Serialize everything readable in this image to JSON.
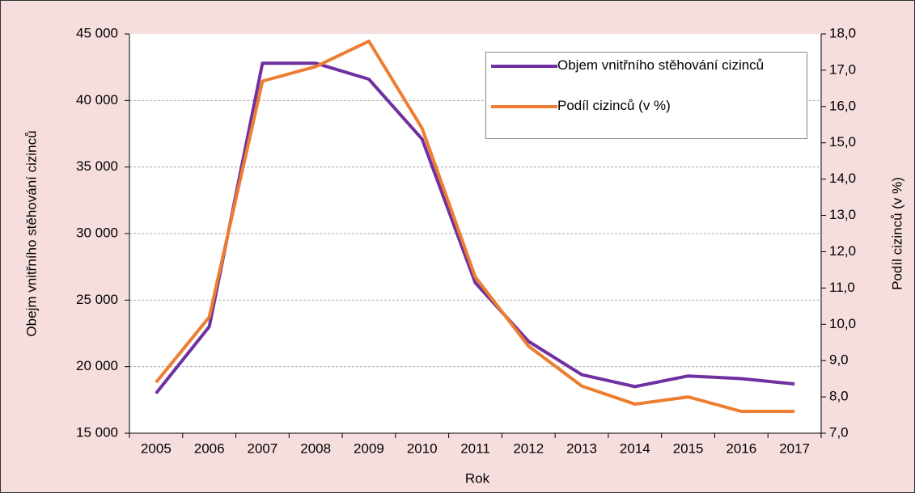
{
  "chart_data": {
    "type": "line",
    "categories": [
      "2005",
      "2006",
      "2007",
      "2008",
      "2009",
      "2010",
      "2011",
      "2012",
      "2013",
      "2014",
      "2015",
      "2016",
      "2017"
    ],
    "series": [
      {
        "name": "Objem vnitřního stěhování cizinců",
        "color": "#7030a0",
        "axis": "y",
        "values": [
          18000,
          23000,
          42800,
          42800,
          41600,
          37100,
          26300,
          21900,
          19400,
          18500,
          19300,
          19100,
          18700
        ]
      },
      {
        "name": "Podíl cizinců (v %)",
        "color": "#ed7d31",
        "axis": "y2",
        "values": [
          8.4,
          10.2,
          16.7,
          17.1,
          17.8,
          15.4,
          11.3,
          9.4,
          8.3,
          7.8,
          8.0,
          7.6,
          7.6
        ]
      }
    ],
    "xlabel": "Rok",
    "ylabel": "Obejm vnitřního stěhování cizinců",
    "y2label": "Podíl cizinců (v %)",
    "ylim": [
      15000,
      45000
    ],
    "yticks": [
      {
        "value": 15000,
        "label": "15 000"
      },
      {
        "value": 20000,
        "label": "20 000"
      },
      {
        "value": 25000,
        "label": "25 000"
      },
      {
        "value": 30000,
        "label": "30 000"
      },
      {
        "value": 35000,
        "label": "35 000"
      },
      {
        "value": 40000,
        "label": "40 000"
      },
      {
        "value": 45000,
        "label": "45 000"
      }
    ],
    "y2lim": [
      7,
      18
    ],
    "y2ticks": [
      {
        "value": 7,
        "label": "7,0"
      },
      {
        "value": 8,
        "label": "8,0"
      },
      {
        "value": 9,
        "label": "9,0"
      },
      {
        "value": 10,
        "label": "10,0"
      },
      {
        "value": 11,
        "label": "11,0"
      },
      {
        "value": 12,
        "label": "12,0"
      },
      {
        "value": 13,
        "label": "13,0"
      },
      {
        "value": 14,
        "label": "14,0"
      },
      {
        "value": 15,
        "label": "15,0"
      },
      {
        "value": 16,
        "label": "16,0"
      },
      {
        "value": 17,
        "label": "17,0"
      },
      {
        "value": 18,
        "label": "18,0"
      }
    ],
    "grid": true
  }
}
